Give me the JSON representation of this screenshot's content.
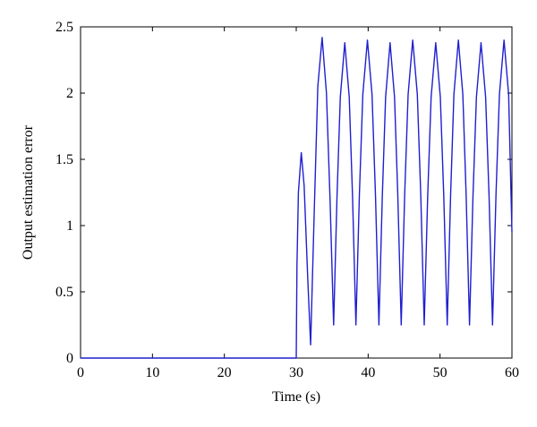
{
  "chart_data": {
    "type": "line",
    "xlabel": "Time (s)",
    "ylabel": "Output estimation error",
    "x": [
      0,
      30,
      30.1,
      30.3,
      30.7,
      31.1,
      31.6,
      32.0,
      32.5,
      33.0,
      33.6,
      34.2,
      34.7,
      35.2,
      35.67,
      36.13,
      36.75,
      37.37,
      37.83,
      38.3,
      38.78,
      39.26,
      39.9,
      40.54,
      41.02,
      41.5,
      41.97,
      42.43,
      43.05,
      43.67,
      44.13,
      44.6,
      45.08,
      45.56,
      46.2,
      46.84,
      47.32,
      47.8,
      48.28,
      48.76,
      49.4,
      50.04,
      50.52,
      51.0,
      51.47,
      51.93,
      52.55,
      53.17,
      53.63,
      54.1,
      54.58,
      55.06,
      55.7,
      56.34,
      56.82,
      57.3,
      57.78,
      58.26,
      58.9,
      59.54,
      60
    ],
    "series": [
      {
        "color": "#1f1fd0",
        "values": [
          0,
          0,
          0.7,
          1.25,
          1.55,
          1.3,
          0.6,
          0.1,
          1.1,
          2.05,
          2.42,
          2.0,
          1.2,
          0.25,
          1.22,
          1.97,
          2.38,
          1.97,
          1.22,
          0.25,
          1.23,
          1.99,
          2.4,
          1.99,
          1.23,
          0.25,
          1.22,
          1.97,
          2.38,
          1.97,
          1.22,
          0.25,
          1.23,
          1.99,
          2.4,
          1.99,
          1.23,
          0.25,
          1.22,
          1.97,
          2.38,
          1.97,
          1.22,
          0.25,
          1.23,
          1.99,
          2.4,
          1.99,
          1.23,
          0.25,
          1.22,
          1.97,
          2.38,
          1.97,
          1.22,
          0.25,
          1.23,
          1.99,
          2.4,
          1.99,
          0.95
        ]
      }
    ],
    "xlim": [
      0,
      60
    ],
    "xticks": [
      0,
      10,
      20,
      30,
      40,
      50,
      60
    ],
    "ylim": [
      0,
      2.5
    ],
    "yticks": [
      0,
      0.5,
      1,
      1.5,
      2,
      2.5
    ]
  }
}
